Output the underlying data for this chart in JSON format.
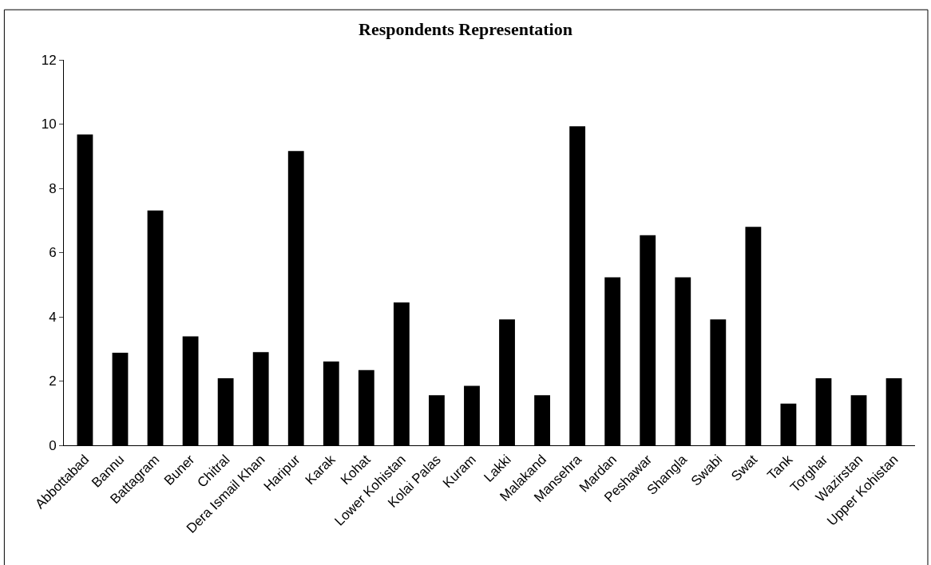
{
  "chart_data": {
    "type": "bar",
    "title": "Respondents Representation",
    "categories": [
      "Abbottabad",
      "Bannu",
      "Battagram",
      "Buner",
      "Chitral",
      "Dera Ismail Khan",
      "Haripur",
      "Karak",
      "Kohat",
      "Lower Kohistan",
      "Kolai Palas",
      "Kuram",
      "Lakki",
      "Malakand",
      "Mansehra",
      "Mardan",
      "Peshawar",
      "Shangla",
      "Swabi",
      "Swat",
      "Tank",
      "Torghar",
      "Wazirstan",
      "Upper Kohistan"
    ],
    "values": [
      9.68,
      2.88,
      7.31,
      3.39,
      2.09,
      2.9,
      9.16,
      2.61,
      2.34,
      4.45,
      1.56,
      1.85,
      3.92,
      1.56,
      9.93,
      5.23,
      6.54,
      5.23,
      3.92,
      6.8,
      1.3,
      2.09,
      1.56,
      2.09
    ],
    "color": "#000000",
    "ylim": [
      0,
      12
    ],
    "yticks": [
      0,
      2,
      4,
      6,
      8,
      10,
      12
    ],
    "grid": false,
    "legend": false
  }
}
